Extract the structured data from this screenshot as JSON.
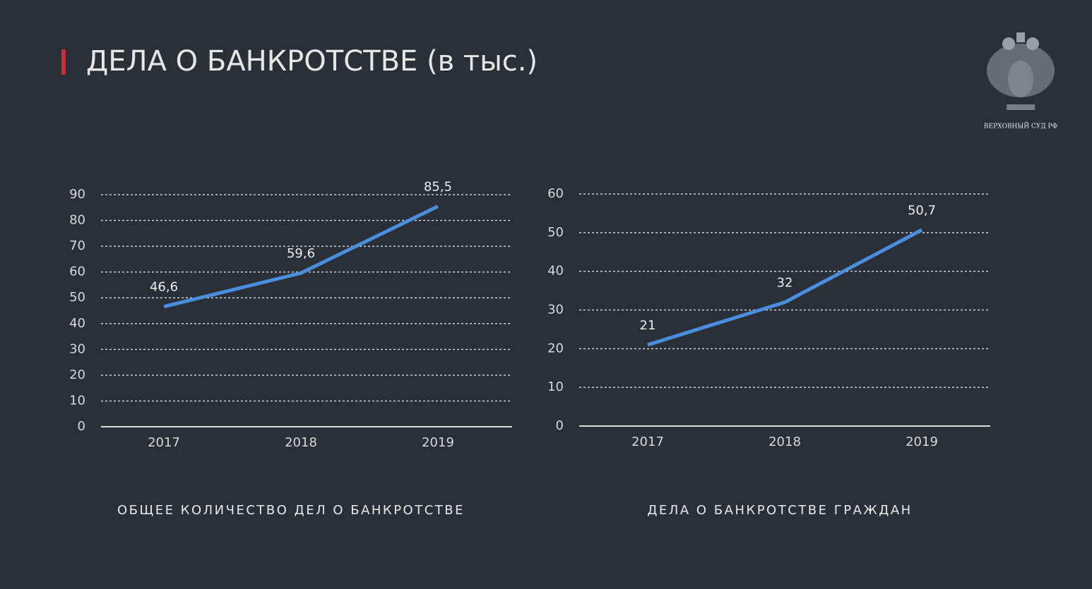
{
  "title": "ДЕЛА О БАНКРОТСТВЕ (в тыс.)",
  "logo_text": "ВЕРХОВНЫЙ СУД РФ",
  "chart_data": [
    {
      "type": "line",
      "title": "ОБЩЕЕ КОЛИЧЕСТВО ДЕЛ О БАНКРОТСТВЕ",
      "categories": [
        "2017",
        "2018",
        "2019"
      ],
      "series": [
        {
          "color": "#4a8ee0",
          "values": [
            46.6,
            59.6,
            85.5
          ],
          "value_labels": [
            "46,6",
            "59,6",
            "85,5"
          ]
        }
      ],
      "ylim": [
        0,
        90
      ],
      "yticks": [
        0,
        10,
        20,
        30,
        40,
        50,
        60,
        70,
        80,
        90
      ],
      "grid": true
    },
    {
      "type": "line",
      "title": "ДЕЛА О БАНКРОТСТВЕ ГРАЖДАН",
      "categories": [
        "2017",
        "2018",
        "2019"
      ],
      "series": [
        {
          "color": "#4a8ee0",
          "values": [
            21,
            32,
            50.7
          ],
          "value_labels": [
            "21",
            "32",
            "50,7"
          ]
        }
      ],
      "ylim": [
        0,
        60
      ],
      "yticks": [
        0,
        10,
        20,
        30,
        40,
        50,
        60
      ],
      "grid": true
    }
  ]
}
